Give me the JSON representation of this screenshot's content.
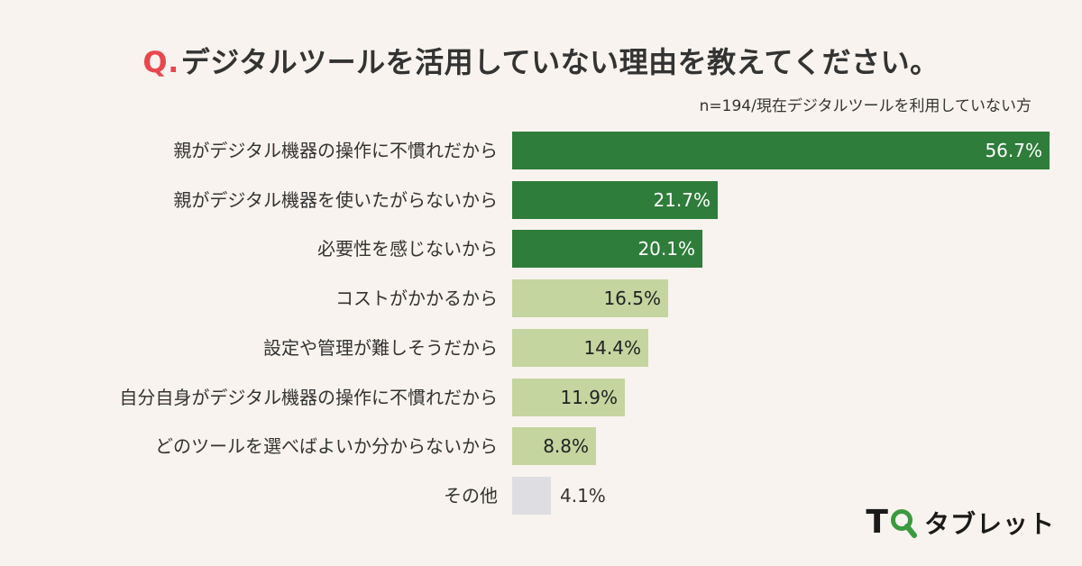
{
  "header": {
    "q_mark": "Q.",
    "title": "デジタルツールを活用していない理由を教えてください。",
    "note": "n=194/現在デジタルツールを利用していない方"
  },
  "colors": {
    "dark_green": "#2e7d3a",
    "light_green": "#c4d59f",
    "gray": "#dedee2",
    "q_red": "#e8474f"
  },
  "chart_data": {
    "type": "bar",
    "orientation": "horizontal",
    "categories": [
      "親がデジタル機器の操作に不慣れだから",
      "親がデジタル機器を使いたがらないから",
      "必要性を感じないから",
      "コストがかかるから",
      "設定や管理が難しそうだから",
      "自分自身がデジタル機器の操作に不慣れだから",
      "どのツールを選べばよいか分からないから",
      "その他"
    ],
    "values": [
      56.7,
      21.7,
      20.1,
      16.5,
      14.4,
      11.9,
      8.8,
      4.1
    ],
    "value_labels": [
      "56.7%",
      "21.7%",
      "20.1%",
      "16.5%",
      "14.4%",
      "11.9%",
      "8.8%",
      "4.1%"
    ],
    "bar_styles": [
      "dark",
      "dark",
      "dark",
      "light",
      "light",
      "light",
      "light",
      "gray"
    ],
    "unit": "%",
    "xlim": [
      0,
      56.7
    ],
    "grid": false,
    "legend": "none"
  },
  "logo": {
    "mark": "T",
    "text": "タブレット"
  }
}
